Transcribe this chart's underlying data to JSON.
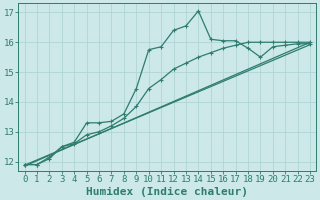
{
  "xlabel": "Humidex (Indice chaleur)",
  "bg_color": "#cce8e8",
  "grid_color": "#b0d4d4",
  "line_color": "#2e7d6e",
  "xlim": [
    -0.5,
    23.5
  ],
  "ylim": [
    11.7,
    17.3
  ],
  "xticks": [
    0,
    1,
    2,
    3,
    4,
    5,
    6,
    7,
    8,
    9,
    10,
    11,
    12,
    13,
    14,
    15,
    16,
    17,
    18,
    19,
    20,
    21,
    22,
    23
  ],
  "yticks": [
    12,
    13,
    14,
    15,
    16,
    17
  ],
  "line1_x": [
    0,
    1,
    2,
    3,
    4,
    5,
    6,
    7,
    8,
    9,
    10,
    11,
    12,
    13,
    14,
    15,
    16,
    17,
    18,
    19,
    20,
    21,
    22,
    23
  ],
  "line1_y": [
    11.9,
    11.9,
    12.15,
    12.5,
    12.65,
    13.3,
    13.3,
    13.35,
    13.6,
    14.45,
    15.75,
    15.85,
    16.4,
    16.55,
    17.05,
    16.1,
    16.05,
    16.05,
    15.8,
    15.5,
    15.85,
    15.9,
    15.95,
    15.95
  ],
  "line2_x": [
    0,
    1,
    2,
    3,
    4,
    5,
    6,
    7,
    8,
    9,
    10,
    11,
    12,
    13,
    14,
    15,
    16,
    17,
    18,
    19,
    20,
    21,
    22,
    23
  ],
  "line2_y": [
    11.9,
    11.9,
    12.1,
    12.5,
    12.6,
    12.9,
    13.0,
    13.2,
    13.45,
    13.85,
    14.45,
    14.75,
    15.1,
    15.3,
    15.5,
    15.65,
    15.8,
    15.9,
    16.0,
    16.0,
    16.0,
    16.0,
    16.0,
    16.0
  ],
  "line3_x": [
    0,
    23
  ],
  "line3_y": [
    11.88,
    15.92
  ],
  "line4_x": [
    0,
    23
  ],
  "line4_y": [
    11.85,
    16.0
  ],
  "xlabel_fontsize": 8,
  "tick_fontsize": 6.5
}
